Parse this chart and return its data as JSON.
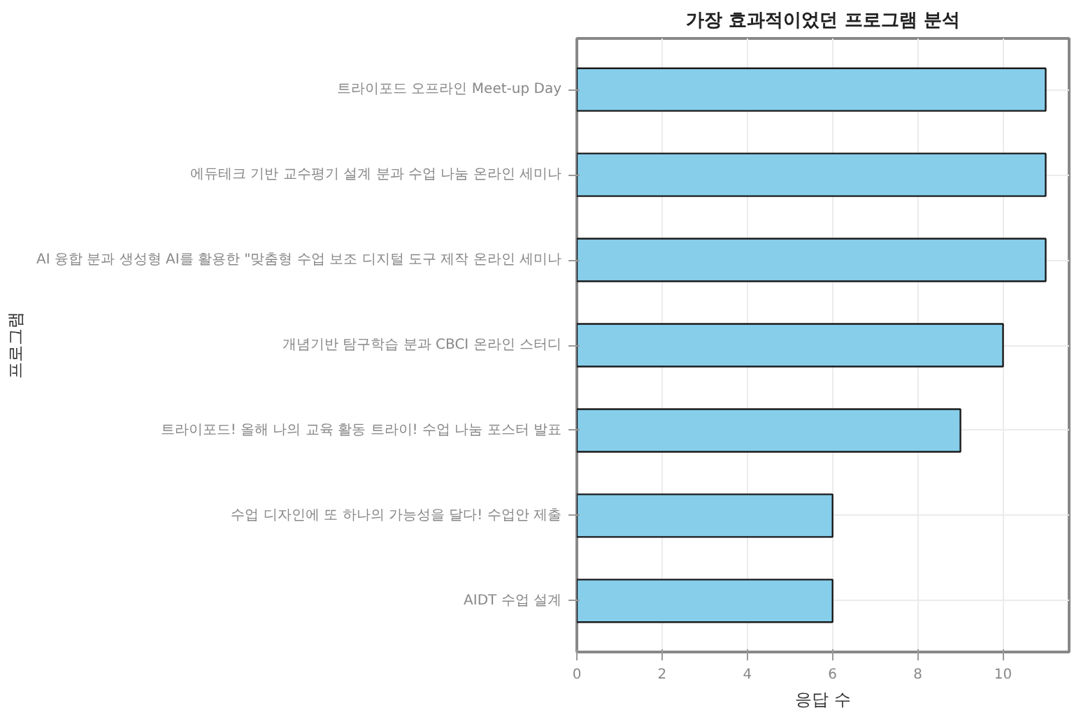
{
  "chart_data": {
    "type": "bar",
    "orientation": "horizontal",
    "title": "가장 효과적이었던 프로그램 분석",
    "xlabel": "응답 수",
    "ylabel": "프로그램",
    "categories": [
      "트라이포드 오프라인 Meet-up Day",
      "에듀테크 기반 교수평기 설계 분과 수업 나눔 온라인 세미나",
      "AI 융합 분과 생성형 AI를 활용한 \"맞춤형 수업 보조 디지털 도구 제작 온라인 세미나",
      "개념기반 탐구학습 분과 CBCI 온라인 스터디",
      "트라이포드! 올해 나의 교육 활동 트라이! 수업 나눔 포스터 발표",
      "수업 디자인에 또 하나의 가능성을 달다! 수업안 제출",
      "AIDT 수업 설계"
    ],
    "values": [
      11,
      11,
      11,
      10,
      9,
      6,
      6
    ],
    "color": "#87ceeb",
    "xlim": [
      0,
      11.55
    ],
    "xticks": [
      0,
      2,
      4,
      6,
      8,
      10
    ],
    "grid": true
  }
}
